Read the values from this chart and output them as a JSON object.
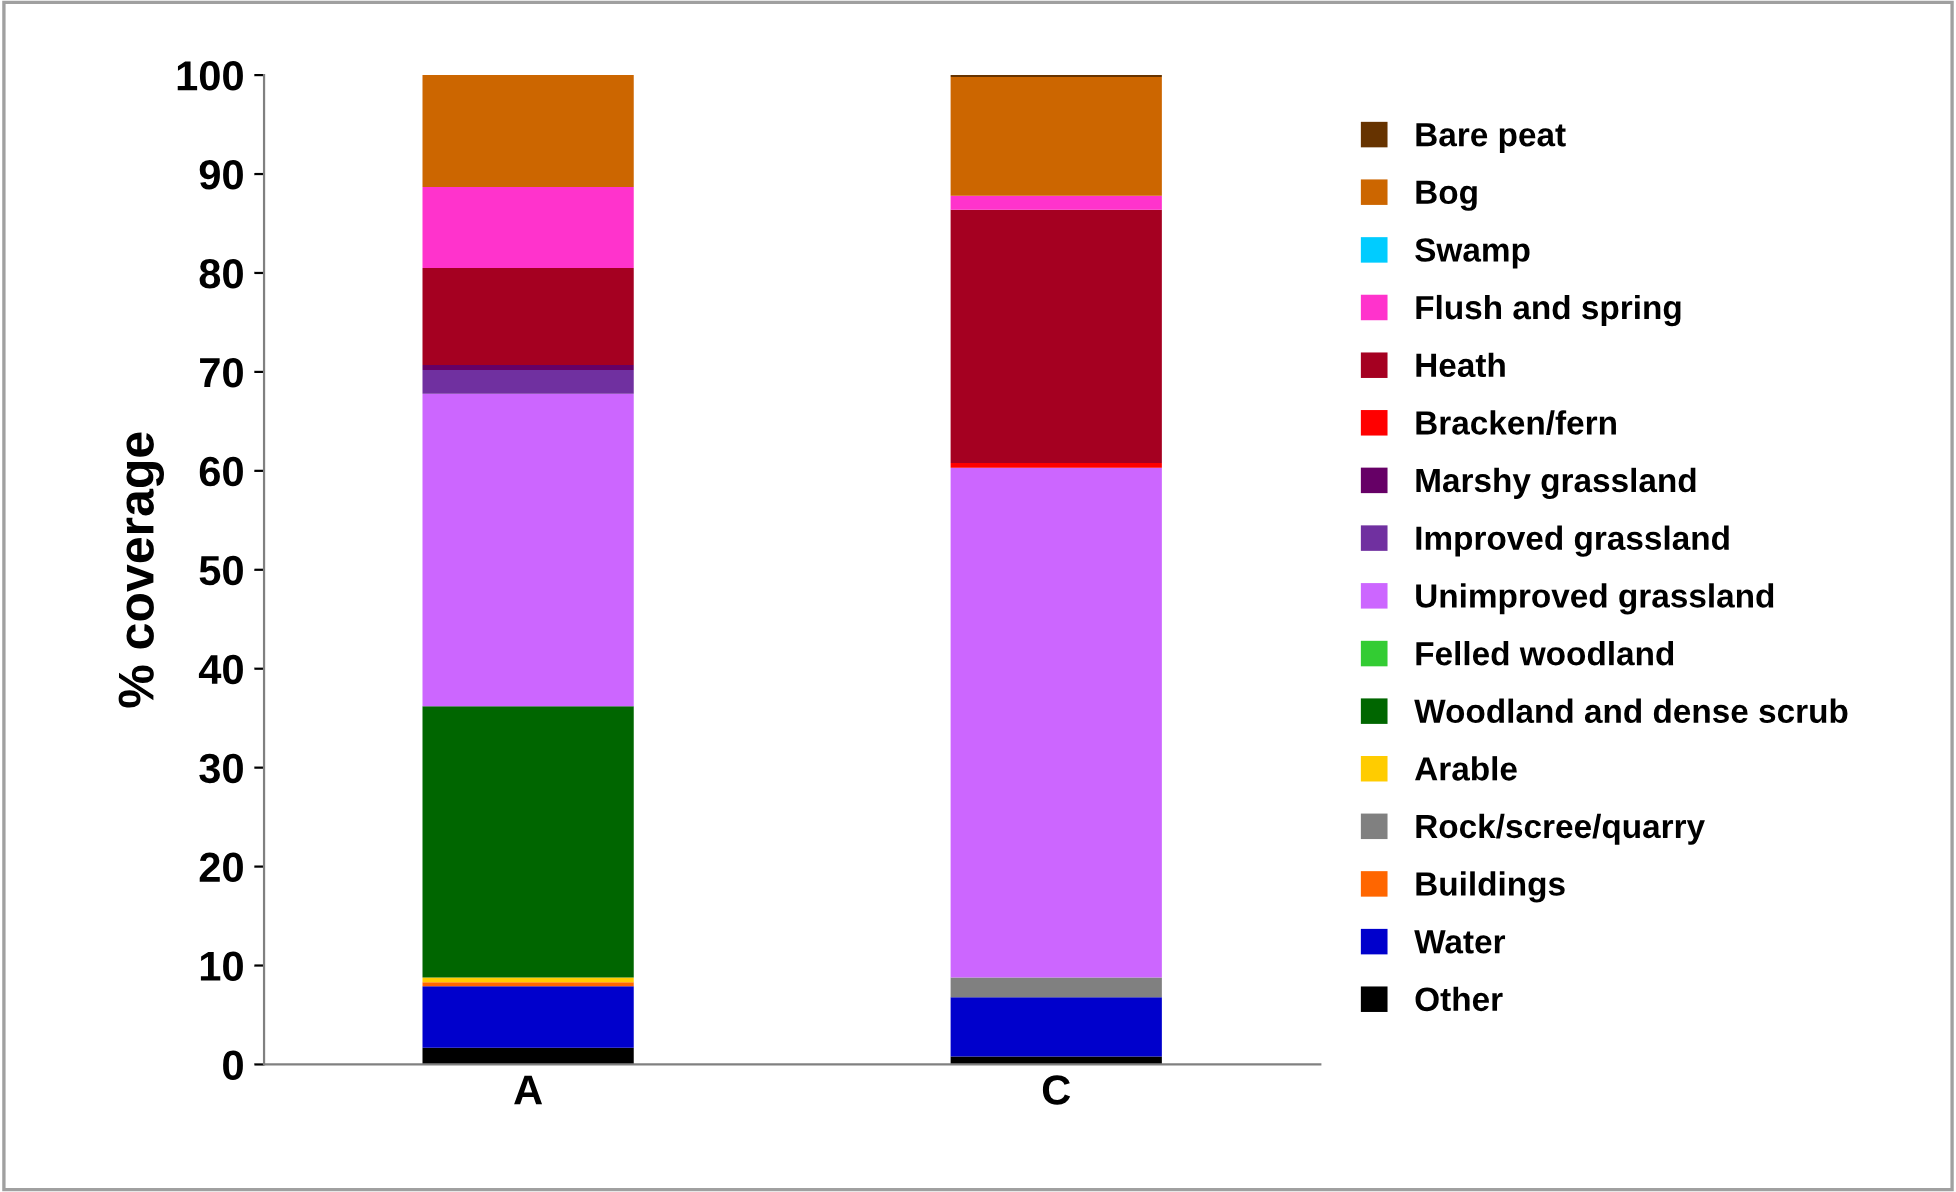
{
  "chart_data": {
    "type": "bar",
    "stacked": true,
    "ylabel": "% coverage",
    "categories": [
      "A",
      "C"
    ],
    "ylim": [
      0,
      100
    ],
    "yticks": [
      0,
      10,
      20,
      30,
      40,
      50,
      60,
      70,
      80,
      90,
      100
    ],
    "grid": false,
    "legend": "right",
    "series": [
      {
        "name": "Other",
        "color": "#000000",
        "values": [
          1.7,
          0.8
        ]
      },
      {
        "name": "Water",
        "color": "#0000cc",
        "values": [
          6.2,
          6.0
        ]
      },
      {
        "name": "Buildings",
        "color": "#ff6600",
        "values": [
          0.4,
          0
        ]
      },
      {
        "name": "Rock/scree/quarry",
        "color": "#808080",
        "values": [
          0,
          2.0
        ]
      },
      {
        "name": "Arable",
        "color": "#ffcc00",
        "values": [
          0.5,
          0
        ]
      },
      {
        "name": "Woodland and dense scrub",
        "color": "#006600",
        "values": [
          27.4,
          0
        ]
      },
      {
        "name": "Felled woodland",
        "color": "#33cc33",
        "values": [
          0,
          0
        ]
      },
      {
        "name": "Unimproved grassland",
        "color": "#cc66ff",
        "values": [
          31.6,
          51.5
        ]
      },
      {
        "name": "Improved grassland",
        "color": "#7030a0",
        "values": [
          2.4,
          0
        ]
      },
      {
        "name": "Marshy grassland",
        "color": "#660066",
        "values": [
          0.5,
          0
        ]
      },
      {
        "name": "Bracken/fern",
        "color": "#ff0000",
        "values": [
          0,
          0.5
        ]
      },
      {
        "name": "Heath",
        "color": "#a50021",
        "values": [
          9.8,
          25.6
        ]
      },
      {
        "name": "Flush and spring",
        "color": "#ff33cc",
        "values": [
          8.2,
          1.4
        ]
      },
      {
        "name": "Swamp",
        "color": "#00ccff",
        "values": [
          0,
          0
        ]
      },
      {
        "name": "Bog",
        "color": "#cc6600",
        "values": [
          11.3,
          12.0
        ]
      },
      {
        "name": "Bare peat",
        "color": "#663300",
        "values": [
          0,
          0.2
        ]
      }
    ]
  }
}
